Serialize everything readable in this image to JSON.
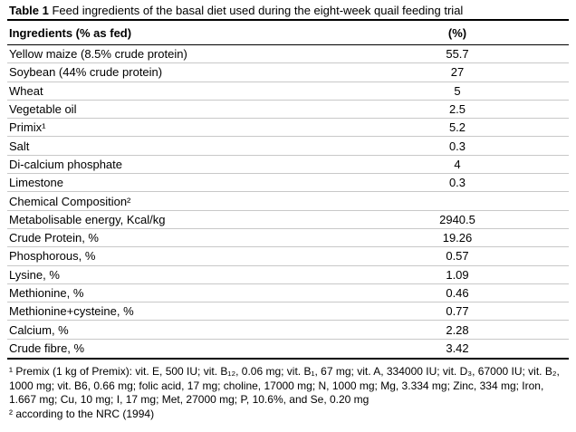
{
  "title": {
    "bold": "Table 1",
    "rest": " Feed ingredients of the basal diet used during the eight-week quail feeding trial"
  },
  "table": {
    "col1_header": "Ingredients (% as fed)",
    "col2_header": "(%)",
    "ingredient_rows": [
      {
        "label": "Yellow maize (8.5% crude protein)",
        "value": "55.7"
      },
      {
        "label": "Soybean (44% crude protein)",
        "value": "27"
      },
      {
        "label": "Wheat",
        "value": "5"
      },
      {
        "label": "Vegetable oil",
        "value": "2.5"
      },
      {
        "label": "Primix¹",
        "value": "5.2"
      },
      {
        "label": "Salt",
        "value": "0.3"
      },
      {
        "label": "Di-calcium phosphate",
        "value": "4"
      },
      {
        "label": "Limestone",
        "value": "0.3"
      }
    ],
    "section_header": "Chemical Composition²",
    "composition_rows": [
      {
        "label": "Metabolisable energy, Kcal/kg",
        "value": "2940.5"
      },
      {
        "label": "Crude Protein, %",
        "value": "19.26"
      },
      {
        "label": "Phosphorous, %",
        "value": "0.57"
      },
      {
        "label": "Lysine, %",
        "value": "1.09"
      },
      {
        "label": "Methionine, %",
        "value": "0.46"
      },
      {
        "label": "Methionine+cysteine, %",
        "value": "0.77"
      },
      {
        "label": "Calcium, %",
        "value": "2.28"
      },
      {
        "label": "Crude fibre, %",
        "value": "3.42"
      }
    ]
  },
  "footnotes": {
    "premix": "¹ Premix (1 kg of Premix): vit. E, 500 IU; vit. B₁₂, 0.06 mg; vit. B₁, 67 mg; vit. A, 334000 IU; vit. D₃, 67000 IU; vit. B₂, 1000 mg; vit. B6, 0.66 mg; folic acid, 17 mg; choline, 17000 mg; N, 1000 mg; Mg, 3.334 mg; Zinc, 334 mg; Iron, 1.667 mg; Cu, 10 mg; I, 17 mg; Met, 27000 mg; P, 10.6%, and Se, 0.20 mg",
    "nrc": "² according to the NRC (1994)"
  },
  "colors": {
    "text": "#000000",
    "rule_black": "#000000",
    "rule_gray": "#c8c8c8",
    "background": "#ffffff"
  }
}
